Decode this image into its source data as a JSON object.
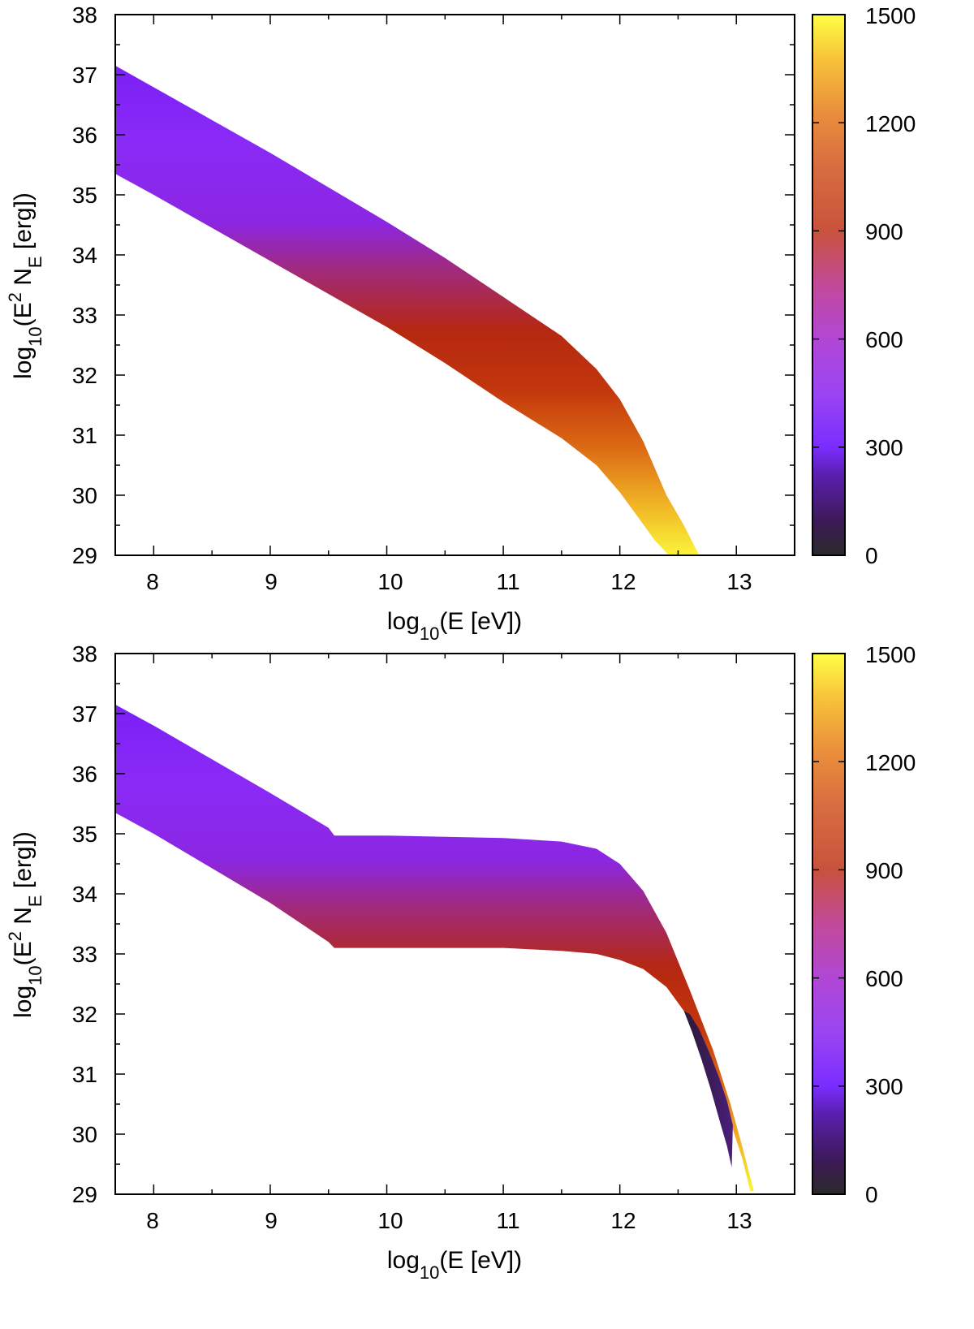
{
  "chart_data": [
    {
      "type": "heatmap",
      "title": "",
      "xlabel": "log10(E [eV])",
      "ylabel": "log10(E2 NE [erg])",
      "xlim": [
        7.67,
        13.5
      ],
      "ylim": [
        29,
        38
      ],
      "x_ticks": [
        "8",
        "9",
        "10",
        "11",
        "12",
        "13"
      ],
      "y_ticks": [
        "29",
        "30",
        "31",
        "32",
        "33",
        "34",
        "35",
        "36",
        "37",
        "38"
      ],
      "colorbar": {
        "range": [
          0,
          1500
        ],
        "ticks": [
          "0",
          "300",
          "600",
          "900",
          "1200",
          "1500"
        ]
      },
      "band": {
        "upper_edge": {
          "x": [
            7.67,
            8.0,
            9.0,
            10.0,
            10.5,
            11.0,
            11.5,
            11.8,
            12.0,
            12.2,
            12.4,
            12.55,
            12.68
          ],
          "y": [
            37.15,
            36.79,
            35.7,
            34.55,
            33.95,
            33.3,
            32.65,
            32.1,
            31.6,
            30.9,
            30.0,
            29.5,
            29.0
          ]
        },
        "lower_edge": {
          "x": [
            7.67,
            8.0,
            9.0,
            10.0,
            10.5,
            11.0,
            11.5,
            11.8,
            12.0,
            12.15,
            12.3,
            12.42
          ],
          "y": [
            35.35,
            35.0,
            33.9,
            32.8,
            32.2,
            31.55,
            30.95,
            30.5,
            30.05,
            29.65,
            29.25,
            29.0
          ]
        }
      },
      "dark_sliver": null
    },
    {
      "type": "heatmap",
      "title": "",
      "xlabel": "log10(E [eV])",
      "ylabel": "log10(E2 NE [erg])",
      "xlim": [
        7.67,
        13.5
      ],
      "ylim": [
        29,
        38
      ],
      "x_ticks": [
        "8",
        "9",
        "10",
        "11",
        "12",
        "13"
      ],
      "y_ticks": [
        "29",
        "30",
        "31",
        "32",
        "33",
        "34",
        "35",
        "36",
        "37",
        "38"
      ],
      "colorbar": {
        "range": [
          0,
          1500
        ],
        "ticks": [
          "0",
          "300",
          "600",
          "900",
          "1200",
          "1500"
        ]
      },
      "band": {
        "upper_edge": {
          "x": [
            7.67,
            8.0,
            9.0,
            9.5,
            9.55,
            10.0,
            11.0,
            11.5,
            11.8,
            12.0,
            12.2,
            12.4,
            12.6,
            12.8,
            12.95,
            13.05,
            13.15
          ],
          "y": [
            37.15,
            36.8,
            35.68,
            35.1,
            34.97,
            34.97,
            34.93,
            34.87,
            34.75,
            34.5,
            34.05,
            33.35,
            32.4,
            31.4,
            30.5,
            29.8,
            29.05
          ]
        },
        "lower_edge": {
          "x": [
            7.67,
            8.0,
            9.0,
            9.5,
            9.55,
            10.0,
            11.0,
            11.5,
            11.8,
            12.0,
            12.2,
            12.4,
            12.55,
            12.7,
            12.85,
            12.95,
            13.05,
            13.12
          ],
          "y": [
            35.35,
            35.0,
            33.85,
            33.2,
            33.1,
            33.1,
            33.1,
            33.05,
            33.0,
            32.9,
            32.75,
            32.45,
            32.05,
            31.5,
            30.8,
            30.2,
            29.6,
            29.05
          ]
        }
      },
      "dark_sliver": {
        "left_edge": {
          "x": [
            12.55,
            12.62,
            12.7,
            12.78,
            12.86,
            12.92,
            12.96
          ],
          "y": [
            32.05,
            31.7,
            31.25,
            30.75,
            30.2,
            29.8,
            29.45
          ]
        },
        "right_edge": {
          "x": [
            12.96,
            12.97,
            12.92,
            12.85,
            12.77,
            12.68,
            12.6,
            12.55
          ],
          "y": [
            29.45,
            30.15,
            30.55,
            30.95,
            31.35,
            31.75,
            32.0,
            32.05
          ]
        }
      }
    }
  ]
}
